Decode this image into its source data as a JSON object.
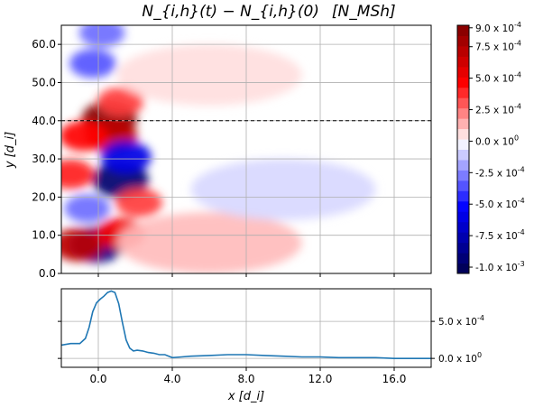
{
  "chart_data": [
    {
      "type": "heatmap",
      "title_formula": "N_{i,h}(t) − N_{i,h}(0)",
      "title_units": "[N_MSh]",
      "ylabel": "y [d_i]",
      "xlim": [
        -2.0,
        18.0
      ],
      "ylim": [
        0.0,
        65.0
      ],
      "y_ticks": [
        "0.0",
        "10.0",
        "20.0",
        "30.0",
        "40.0",
        "50.0",
        "60.0"
      ],
      "grid": true,
      "reference_line_y": 40.0,
      "colormap": "seismic",
      "colorbar_ticks": [
        "9.0 x 10^-4",
        "7.5 x 10^-4",
        "5.0 x 10^-4",
        "2.5 x 10^-4",
        "0.0 x 10^0",
        "-2.5 x 10^-4",
        "-5.0 x 10^-4",
        "-7.5 x 10^-4",
        "-1.0 x 10^-3"
      ],
      "colorbar_range": [
        -0.00105,
        0.00092
      ],
      "blobs": [
        {
          "x": 0.6,
          "y": 40.5,
          "value": 0.0009
        },
        {
          "x": 0.7,
          "y": 36.0,
          "value": 0.0007
        },
        {
          "x": -0.8,
          "y": 36.0,
          "value": 0.00045
        },
        {
          "x": 1.2,
          "y": 45.0,
          "value": 0.00035
        },
        {
          "x": -0.3,
          "y": 55.0,
          "value": -0.00035
        },
        {
          "x": 0.2,
          "y": 63.0,
          "value": -0.0003
        },
        {
          "x": 1.2,
          "y": 24.5,
          "value": -0.00095
        },
        {
          "x": 1.5,
          "y": 30.5,
          "value": -0.0006
        },
        {
          "x": -0.1,
          "y": 7.5,
          "value": -0.0009
        },
        {
          "x": -1.1,
          "y": 7.5,
          "value": 0.0007
        },
        {
          "x": 1.2,
          "y": 10.5,
          "value": 0.0005
        },
        {
          "x": -0.6,
          "y": 17.0,
          "value": -0.0003
        },
        {
          "x": -1.5,
          "y": 26.0,
          "value": 0.0004
        },
        {
          "x": 2.2,
          "y": 18.5,
          "value": 0.00035
        },
        {
          "x": 6.0,
          "y": 8.0,
          "value": 0.00012
        },
        {
          "x": 10.0,
          "y": 22.0,
          "value": -8e-05
        },
        {
          "x": 6.0,
          "y": 52.0,
          "value": 6e-05
        }
      ]
    },
    {
      "type": "line",
      "xlabel": "x [d_i]",
      "x_ticks": [
        "0.0",
        "4.0",
        "8.0",
        "12.0",
        "16.0"
      ],
      "y_ticks": [
        "0.0 x 10^0",
        "5.0 x 10^-4"
      ],
      "xlim": [
        -2.0,
        18.0
      ],
      "ylim": [
        -0.00012,
        0.00094
      ],
      "grid": true,
      "color": "#1f77b4",
      "x": [
        -2.0,
        -1.5,
        -1.0,
        -0.7,
        -0.5,
        -0.3,
        -0.1,
        0.1,
        0.3,
        0.5,
        0.7,
        0.9,
        1.1,
        1.3,
        1.5,
        1.7,
        1.9,
        2.1,
        2.4,
        2.7,
        3.0,
        3.3,
        3.6,
        4.0,
        4.5,
        5.0,
        6.0,
        7.0,
        8.0,
        9.0,
        10.0,
        11.0,
        12.0,
        13.0,
        14.0,
        15.0,
        16.0,
        17.0,
        18.0
      ],
      "y": [
        0.00018,
        0.0002,
        0.0002,
        0.00027,
        0.00042,
        0.00063,
        0.00075,
        0.0008,
        0.00084,
        0.00089,
        0.00091,
        0.00089,
        0.00074,
        0.00049,
        0.00025,
        0.00014,
        0.0001,
        0.00011,
        0.0001,
        8e-05,
        7e-05,
        5e-05,
        5e-05,
        1e-05,
        2e-05,
        3e-05,
        4e-05,
        5e-05,
        5e-05,
        4e-05,
        3e-05,
        2e-05,
        2e-05,
        1e-05,
        1e-05,
        1e-05,
        0.0,
        0.0,
        0.0
      ]
    }
  ]
}
